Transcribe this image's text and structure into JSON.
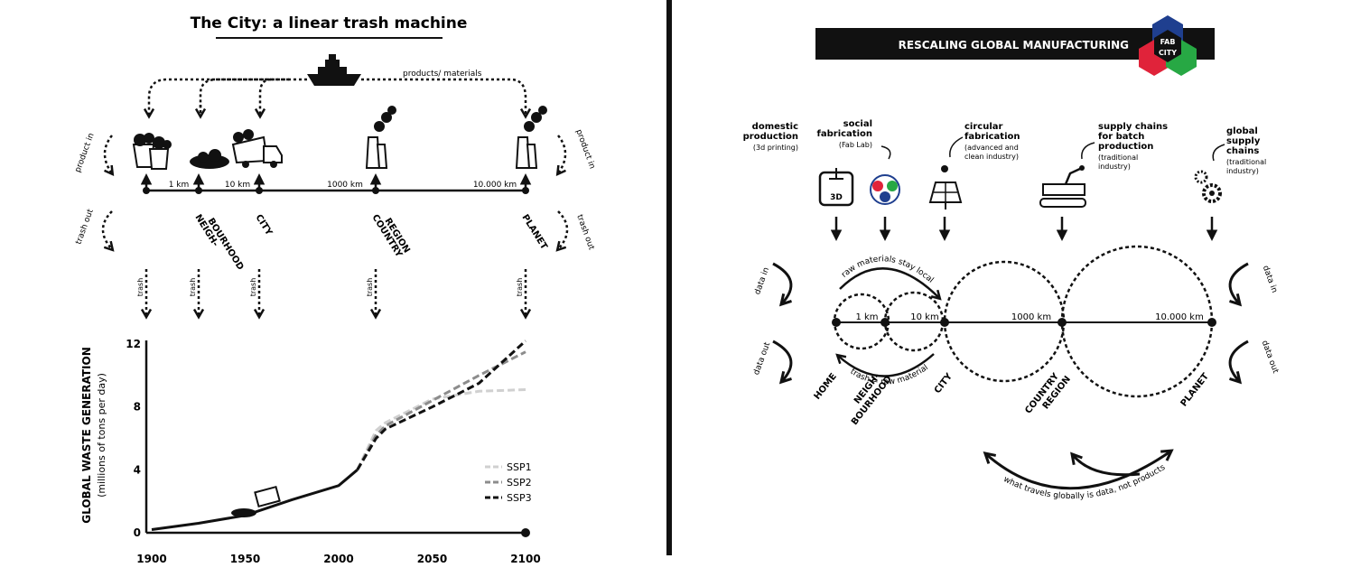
{
  "left": {
    "title": "The City: a linear trash machine",
    "ship_label": "products/ materials",
    "product_in": "product in",
    "trash_out": "trash out",
    "trash": "trash",
    "scale_labels": [
      "1 km",
      "10 km",
      "1000 km",
      "10.000 km"
    ],
    "nodes": [
      {
        "lines": [
          "NEIGH-",
          "BOURHOOD"
        ]
      },
      {
        "lines": [
          "CITY"
        ]
      },
      {
        "lines": [
          "COUNTRY",
          "REGION"
        ]
      },
      {
        "lines": [
          "PLANET"
        ]
      }
    ]
  },
  "right": {
    "title": "RESCALING GLOBAL MANUFACTURING",
    "logo": {
      "line1": "FAB",
      "line2": "CITY"
    },
    "categories": [
      {
        "title": [
          "domestic",
          "production"
        ],
        "sub": [
          "(3d printing)"
        ]
      },
      {
        "title": [
          "social",
          "fabrication"
        ],
        "sub": [
          "(Fab Lab)"
        ]
      },
      {
        "title": [
          "circular",
          "fabrication"
        ],
        "sub": [
          "(advanced and",
          "clean industry)"
        ]
      },
      {
        "title": [
          "supply chains",
          "for batch",
          "production"
        ],
        "sub": [
          "(traditional",
          "industry)"
        ]
      },
      {
        "title": [
          "global",
          "supply",
          "chains"
        ],
        "sub": [
          "(traditional",
          "industry)"
        ]
      }
    ],
    "icon_3d": "3D",
    "scale_labels": [
      "1 km",
      "10 km",
      "1000 km",
      "10.000 km"
    ],
    "raw_local": "raw materials stay local",
    "trash_raw": "trash = raw material",
    "data_in": "data in",
    "data_out": "data out",
    "nodes": [
      {
        "lines": [
          "HOME"
        ]
      },
      {
        "lines": [
          "NEIGH-",
          "BOURHOOD"
        ]
      },
      {
        "lines": [
          "CITY"
        ]
      },
      {
        "lines": [
          "COUNTRY",
          "REGION"
        ]
      },
      {
        "lines": [
          "PLANET"
        ]
      }
    ],
    "bottom_caption": "what travels globally is data, not products"
  },
  "colors": {
    "ink": "#111111",
    "logo_blue": "#1f3f8f",
    "logo_red": "#e0233a",
    "logo_green": "#27a844",
    "ssp1": "#d0d0d0",
    "ssp2": "#8c8c8c",
    "ssp3": "#111111"
  },
  "chart_data": {
    "type": "line",
    "title": "",
    "ylabel": "GLOBAL WASTE GENERATION",
    "ylabel_sub": "(millions of tons per day)",
    "xlabel": "",
    "xlim": [
      1900,
      2100
    ],
    "ylim": [
      0,
      12
    ],
    "x_ticks": [
      1900,
      1950,
      2000,
      2050,
      2100
    ],
    "y_ticks": [
      0,
      4,
      8,
      12
    ],
    "grid": false,
    "legend": "right",
    "historical": {
      "x": [
        1900,
        1925,
        1950,
        1975,
        2000,
        2010
      ],
      "values": [
        0.2,
        0.6,
        1.1,
        2.1,
        3.0,
        4.0
      ]
    },
    "series": [
      {
        "name": "SSP1",
        "x": [
          2010,
          2020,
          2025,
          2050,
          2075,
          2100
        ],
        "values": [
          4.0,
          6.5,
          7.0,
          8.5,
          9.0,
          9.1
        ]
      },
      {
        "name": "SSP2",
        "x": [
          2010,
          2020,
          2025,
          2050,
          2075,
          2100
        ],
        "values": [
          4.0,
          6.2,
          6.8,
          8.4,
          10.0,
          11.5
        ]
      },
      {
        "name": "SSP3",
        "x": [
          2010,
          2020,
          2025,
          2050,
          2075,
          2100
        ],
        "values": [
          4.0,
          6.0,
          6.6,
          8.0,
          9.5,
          12.2
        ]
      }
    ]
  }
}
